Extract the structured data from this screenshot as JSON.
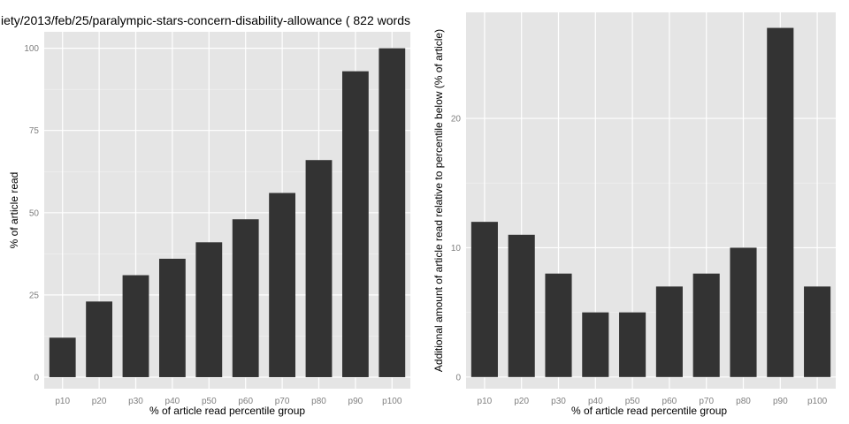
{
  "chart_data": [
    {
      "type": "bar",
      "title": "iety/2013/feb/25/paralympic-stars-concern-disability-allowance ( 822 words",
      "xlabel": "% of article read percentile group",
      "ylabel": "% of article read",
      "categories": [
        "p10",
        "p20",
        "p30",
        "p40",
        "p50",
        "p60",
        "p70",
        "p80",
        "p90",
        "p100"
      ],
      "values": [
        12,
        23,
        31,
        36,
        41,
        48,
        56,
        66,
        93,
        100
      ],
      "ylim": [
        -3.5,
        105
      ],
      "yticks": [
        0,
        25,
        50,
        75,
        100
      ],
      "grid": true,
      "bar_color": "#333333",
      "panel_color": "#e5e5e5"
    },
    {
      "type": "bar",
      "title": "",
      "xlabel": "% of article read percentile group",
      "ylabel": "Additional amount of article read relative to percentile below (% of article)",
      "categories": [
        "p10",
        "p20",
        "p30",
        "p40",
        "p50",
        "p60",
        "p70",
        "p80",
        "p90",
        "p100"
      ],
      "values": [
        12,
        11,
        8,
        5,
        5,
        7,
        8,
        10,
        27,
        7
      ],
      "ylim": [
        -0.9,
        28.2
      ],
      "yticks": [
        0,
        10,
        20
      ],
      "grid": true,
      "bar_color": "#333333",
      "panel_color": "#e5e5e5"
    }
  ]
}
